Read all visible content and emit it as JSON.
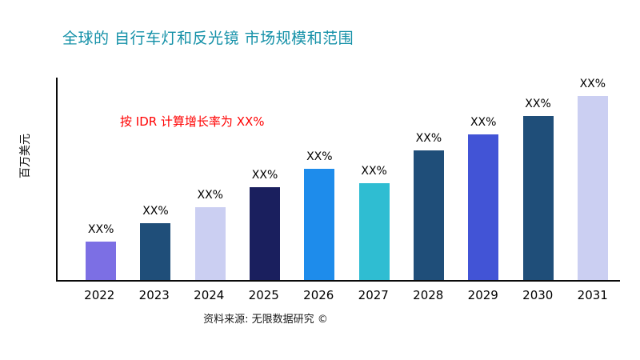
{
  "title": "全球的 自行车灯和反光镜 市场规模和范围",
  "footer": "资料来源: 无限数据研究 ©",
  "chart_data": {
    "type": "bar",
    "title": "全球的 自行车灯和反光镜 市场规模和范围",
    "ylabel": "百万美元",
    "xlabel": "",
    "annotation": "按 IDR 计算增长率为 XX%",
    "categories": [
      "2022",
      "2023",
      "2024",
      "2025",
      "2026",
      "2027",
      "2028",
      "2029",
      "2030",
      "2031"
    ],
    "values": [
      19,
      28,
      36,
      46,
      55,
      48,
      64,
      72,
      81,
      91
    ],
    "bar_labels": [
      "XX%",
      "XX%",
      "XX%",
      "XX%",
      "XX%",
      "XX%",
      "XX%",
      "XX%",
      "XX%",
      "XX%"
    ],
    "bar_colors": [
      "#7C6FE4",
      "#1F4E79",
      "#CBCFF2",
      "#1A1F5E",
      "#1E8CEB",
      "#2FBDD2",
      "#1F4E79",
      "#4254D6",
      "#1F4E79",
      "#CBCFF2"
    ],
    "ylim": [
      0,
      100
    ],
    "grid": false,
    "legend": false,
    "colors": {
      "title": "#1591A8",
      "annotation": "#FF0000",
      "axis": "#000000",
      "labels": "#000000"
    }
  }
}
